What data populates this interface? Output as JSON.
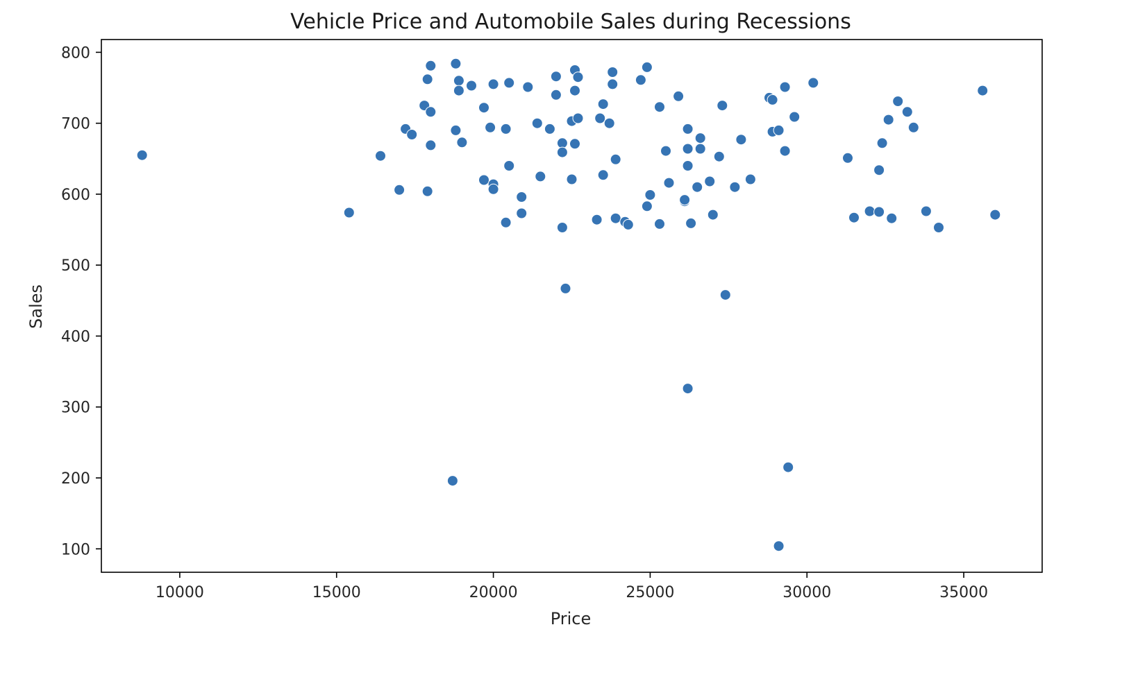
{
  "chart_data": {
    "type": "scatter",
    "title": "Vehicle Price and Automobile Sales during Recessions",
    "xlabel": "Price",
    "ylabel": "Sales",
    "xlim": [
      7500,
      37500
    ],
    "ylim": [
      67,
      818
    ],
    "xticks": [
      10000,
      15000,
      20000,
      25000,
      30000,
      35000
    ],
    "yticks": [
      100,
      200,
      300,
      400,
      500,
      600,
      700,
      800
    ],
    "grid": false,
    "legend": "none",
    "colors": {
      "point_fill": "#3674b4",
      "point_stroke": "#ffffff",
      "axis": "#000000",
      "text": "#262626"
    },
    "points": [
      [
        8800,
        655
      ],
      [
        15400,
        574
      ],
      [
        16400,
        654
      ],
      [
        17000,
        606
      ],
      [
        17200,
        692
      ],
      [
        17400,
        684
      ],
      [
        17800,
        725
      ],
      [
        17900,
        762
      ],
      [
        17900,
        604
      ],
      [
        18000,
        781
      ],
      [
        18000,
        716
      ],
      [
        18000,
        669
      ],
      [
        18700,
        196
      ],
      [
        18800,
        690
      ],
      [
        18800,
        784
      ],
      [
        18900,
        760
      ],
      [
        18900,
        746
      ],
      [
        19000,
        673
      ],
      [
        19300,
        753
      ],
      [
        19700,
        722
      ],
      [
        19700,
        620
      ],
      [
        19900,
        694
      ],
      [
        20000,
        755
      ],
      [
        20000,
        614
      ],
      [
        20000,
        607
      ],
      [
        20400,
        692
      ],
      [
        20400,
        560
      ],
      [
        20500,
        757
      ],
      [
        20500,
        640
      ],
      [
        20900,
        596
      ],
      [
        20900,
        573
      ],
      [
        21100,
        751
      ],
      [
        21400,
        700
      ],
      [
        21500,
        625
      ],
      [
        21800,
        692
      ],
      [
        22000,
        740
      ],
      [
        22000,
        766
      ],
      [
        22200,
        553
      ],
      [
        22200,
        672
      ],
      [
        22200,
        659
      ],
      [
        22300,
        467
      ],
      [
        22500,
        703
      ],
      [
        22500,
        621
      ],
      [
        22600,
        775
      ],
      [
        22600,
        746
      ],
      [
        22600,
        671
      ],
      [
        22700,
        765
      ],
      [
        22700,
        707
      ],
      [
        23300,
        564
      ],
      [
        23400,
        707
      ],
      [
        23500,
        727
      ],
      [
        23500,
        627
      ],
      [
        23700,
        700
      ],
      [
        23800,
        772
      ],
      [
        23800,
        755
      ],
      [
        23900,
        649
      ],
      [
        23900,
        566
      ],
      [
        24200,
        561
      ],
      [
        24300,
        557
      ],
      [
        24700,
        761
      ],
      [
        24900,
        779
      ],
      [
        24900,
        583
      ],
      [
        25000,
        599
      ],
      [
        25300,
        723
      ],
      [
        25300,
        558
      ],
      [
        25500,
        661
      ],
      [
        25600,
        616
      ],
      [
        25900,
        738
      ],
      [
        26100,
        590
      ],
      [
        26100,
        592
      ],
      [
        26200,
        692
      ],
      [
        26200,
        326
      ],
      [
        26200,
        664
      ],
      [
        26200,
        640
      ],
      [
        26300,
        559
      ],
      [
        26500,
        610
      ],
      [
        26600,
        679
      ],
      [
        26600,
        664
      ],
      [
        26900,
        618
      ],
      [
        27000,
        571
      ],
      [
        27200,
        653
      ],
      [
        27300,
        725
      ],
      [
        27400,
        458
      ],
      [
        27700,
        610
      ],
      [
        27900,
        677
      ],
      [
        28200,
        621
      ],
      [
        28800,
        736
      ],
      [
        28900,
        733
      ],
      [
        28900,
        688
      ],
      [
        29100,
        104
      ],
      [
        29100,
        690
      ],
      [
        29300,
        661
      ],
      [
        29300,
        751
      ],
      [
        29400,
        215
      ],
      [
        29600,
        709
      ],
      [
        30200,
        757
      ],
      [
        31300,
        651
      ],
      [
        31500,
        567
      ],
      [
        32000,
        576
      ],
      [
        32300,
        575
      ],
      [
        32300,
        634
      ],
      [
        32400,
        672
      ],
      [
        32600,
        705
      ],
      [
        32700,
        566
      ],
      [
        32900,
        731
      ],
      [
        33200,
        716
      ],
      [
        33400,
        694
      ],
      [
        33800,
        576
      ],
      [
        34200,
        553
      ],
      [
        35600,
        746
      ],
      [
        36000,
        571
      ]
    ]
  }
}
